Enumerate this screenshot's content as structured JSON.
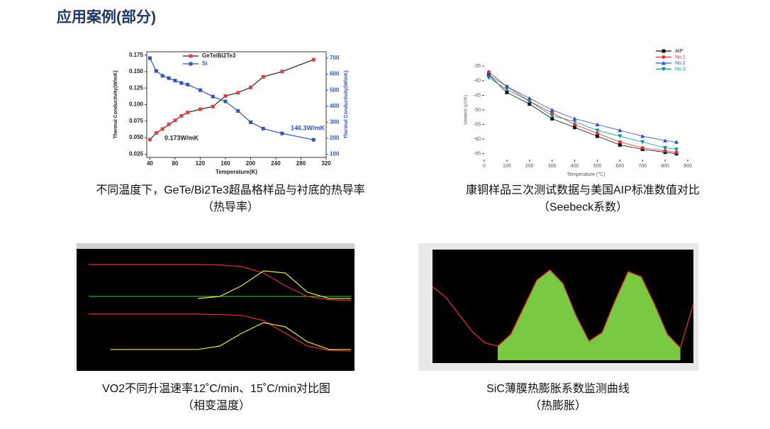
{
  "header": {
    "title": "应用案例(部分)"
  },
  "panels": [
    {
      "caption": [
        "不同温度下，GeTe/Bi2Te3超晶格样品与衬底的热导率",
        "（热导率）"
      ],
      "chart": {
        "type": "line",
        "xlabel": "Temperature(K)",
        "ylabel": "Thermal Conductivity(W/mK)",
        "y2label": "Thermal Conductivity(W/mK)",
        "x": [
          40,
          50,
          60,
          70,
          80,
          90,
          100,
          120,
          140,
          160,
          180,
          200,
          220,
          250,
          300
        ],
        "xlim": [
          35,
          320
        ],
        "xticks": [
          40,
          80,
          120,
          160,
          200,
          240,
          280,
          320
        ],
        "ylim": [
          0.02,
          0.18
        ],
        "yticks": [
          0.025,
          {
            "value": 0.05,
            "label": "0.050"
          },
          0.075,
          {
            "value": 0.1,
            "label": "0.100"
          },
          0.125,
          {
            "value": 0.15,
            "label": "0.150"
          },
          0.175
        ],
        "y2lim": [
          80,
          740
        ],
        "y2ticks": [
          100,
          200,
          300,
          400,
          500,
          600,
          700
        ],
        "series": [
          {
            "name": "GeTe/Bi2Te3",
            "color": "#222222",
            "marker": "square",
            "marker_color": "#e04040",
            "values": [
              0.047,
              0.057,
              0.063,
              0.07,
              0.076,
              0.083,
              0.088,
              0.093,
              0.097,
              0.113,
              0.118,
              0.126,
              0.142,
              0.15,
              0.168
            ]
          },
          {
            "name": "Si",
            "color": "#3355bb",
            "marker": "square",
            "marker_color": "#3355bb",
            "axis": "y2",
            "values": [
              700,
              620,
              590,
              575,
              560,
              545,
              535,
              500,
              460,
              430,
              370,
              300,
              260,
              230,
              190
            ]
          }
        ],
        "annotations": [
          "0.173W/mK",
          "146.3W/mK"
        ]
      }
    },
    {
      "caption": [
        "康铜样品三次测试数据与美国AIP标准数值对比",
        "（Seebeck系数）"
      ],
      "chart": {
        "type": "line",
        "xlabel": "Temperature (℃)",
        "ylabel": "Seebeck (μV/K)",
        "x": [
          20,
          100,
          200,
          300,
          400,
          500,
          600,
          700,
          800,
          850
        ],
        "xlim": [
          0,
          900
        ],
        "xticks": [
          0,
          100,
          200,
          300,
          400,
          500,
          600,
          700,
          800,
          900
        ],
        "ylim": [
          -67,
          -33
        ],
        "yticks": [
          -35,
          -40,
          -45,
          -50,
          -55,
          -60,
          -65
        ],
        "series": [
          {
            "name": "AIP",
            "color": "#111111",
            "marker": "square",
            "marker_color": "#111111",
            "values": [
              -38,
              -44,
              -48,
              -53,
              -56,
              -59,
              -62,
              -63.5,
              -64.5,
              -65
            ]
          },
          {
            "name": "No.1",
            "color": "#e03030",
            "marker": "circle",
            "marker_color": "#e03030",
            "values": [
              -37,
              -42,
              -47,
              -51,
              -55,
              -58,
              -61,
              -63,
              -64,
              -64.5
            ]
          },
          {
            "name": "No.2",
            "color": "#3050c0",
            "marker": "triangle",
            "marker_color": "#3050c0",
            "values": [
              -38,
              -42,
              -46,
              -50,
              -53,
              -55,
              -57,
              -59,
              -60.5,
              -61
            ]
          },
          {
            "name": "No.3",
            "color": "#109090",
            "marker": "triangle-down",
            "marker_color": "#109090",
            "values": [
              -39,
              -43,
              -47,
              -52,
              -54,
              -57,
              -59,
              -61,
              -63,
              -63.5
            ]
          }
        ]
      }
    },
    {
      "caption": [
        "VO2不同升温速率12˚C/min、15˚C/min对比图",
        "（相变温度）"
      ],
      "chart": {
        "type": "line",
        "subplots": [
          {
            "x": [
              20,
              25,
              30,
              35,
              40,
              45,
              50,
              55,
              60,
              65,
              70,
              75,
              80
            ],
            "xlim": [
              20,
              80
            ],
            "ylim": [
              0,
              1
            ],
            "series": [
              {
                "color": "#e03030",
                "values": [
                  0.95,
                  0.95,
                  0.95,
                  0.95,
                  0.95,
                  0.95,
                  0.94,
                  0.9,
                  0.75,
                  0.45,
                  0.2,
                  0.12,
                  0.1
                ]
              },
              {
                "color": "#e8e84a",
                "values": [
                  null,
                  null,
                  null,
                  null,
                  null,
                  0.15,
                  0.2,
                  0.45,
                  0.8,
                  0.75,
                  0.3,
                  0.15,
                  0.15
                ]
              }
            ]
          },
          {
            "x": [
              20,
              25,
              30,
              35,
              40,
              45,
              50,
              55,
              60,
              65,
              70,
              75,
              80
            ],
            "xlim": [
              20,
              80
            ],
            "ylim": [
              0,
              1
            ],
            "series": [
              {
                "color": "#e03030",
                "values": [
                  0.95,
                  0.95,
                  0.95,
                  0.95,
                  0.95,
                  0.95,
                  0.94,
                  0.92,
                  0.8,
                  0.5,
                  0.2,
                  0.1,
                  0.08
                ]
              },
              {
                "color": "#e8e84a",
                "values": [
                  null,
                  0.12,
                  0.12,
                  0.12,
                  0.12,
                  0.12,
                  0.2,
                  0.5,
                  0.75,
                  0.65,
                  0.3,
                  0.12,
                  0.12
                ]
              }
            ]
          }
        ]
      }
    },
    {
      "caption": [
        "SiC薄膜热膨胀系数监测曲线",
        "（热膨胀）"
      ],
      "chart": {
        "type": "area",
        "subplots": [
          {
            "x": [
              0,
              50,
              100,
              150,
              200,
              250,
              300,
              350,
              400,
              450,
              500,
              550,
              600,
              650,
              700,
              750,
              800,
              850,
              900,
              950,
              1000
            ],
            "xlim": [
              0,
              1000
            ],
            "ylim": [
              7.5,
              14.2
            ],
            "series": [
              {
                "color": "#d03030",
                "fill": "#7ac943",
                "values": [
                  12.0,
                  11.4,
                  10.4,
                  9.4,
                  8.7,
                  8.5,
                  9.2,
                  10.8,
                  12.4,
                  13.0,
                  12.2,
                  10.3,
                  8.8,
                  9.3,
                  11.2,
                  12.9,
                  12.6,
                  11.0,
                  9.2,
                  8.4,
                  11.0
                ]
              }
            ]
          }
        ]
      }
    }
  ]
}
